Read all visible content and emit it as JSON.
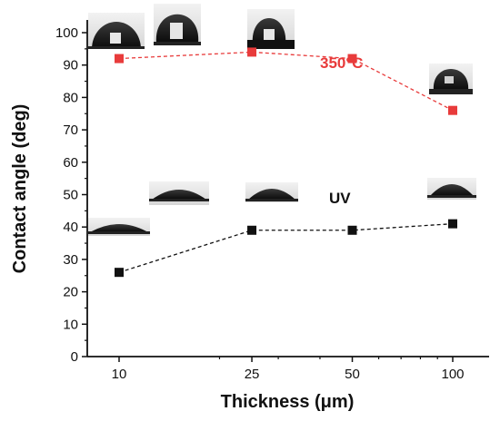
{
  "chart_data": {
    "type": "scatter",
    "xlabel": "Thickness (μm)",
    "ylabel": "Contact angle (deg)",
    "x_ticks": [
      10,
      25,
      50,
      100
    ],
    "y_ticks": [
      0,
      10,
      20,
      30,
      40,
      50,
      60,
      70,
      80,
      90,
      100
    ],
    "ylim": [
      0,
      100
    ],
    "x_scale": "log",
    "grid": false,
    "series": [
      {
        "name": "350°C",
        "color": "#e83b3b",
        "marker": "square",
        "line": "dashed",
        "x": [
          10,
          25,
          50,
          100
        ],
        "y": [
          92,
          94,
          92,
          76
        ]
      },
      {
        "name": "UV",
        "color": "#111111",
        "marker": "square",
        "line": "dashed",
        "x": [
          10,
          25,
          50,
          100
        ],
        "y": [
          26,
          39,
          39,
          41
        ]
      }
    ],
    "inset_images": "water droplet photos above each data point"
  }
}
